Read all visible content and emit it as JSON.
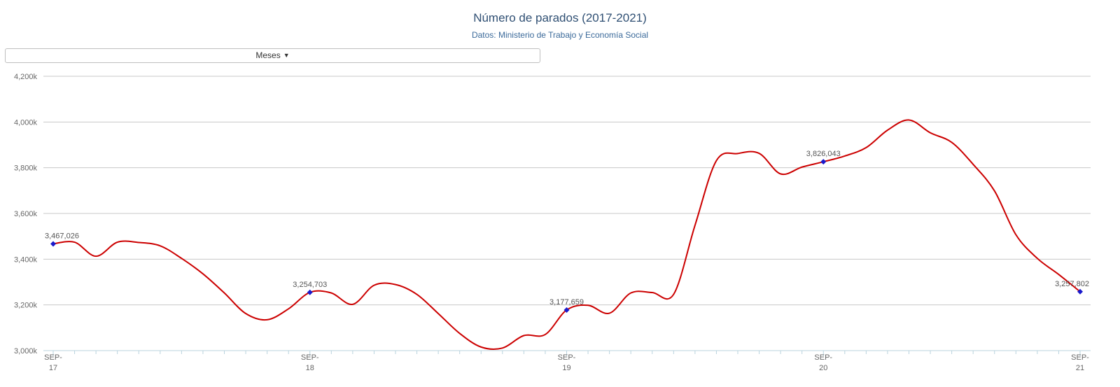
{
  "header": {
    "title": "Número de parados (2017-2021)",
    "subtitle": "Datos: Ministerio de Trabajo y Economía Social"
  },
  "period_selector": {
    "label": "Meses",
    "caret_icon": "caret-down-icon"
  },
  "colors": {
    "line": "#cc0000",
    "marker": "#1a1acc",
    "grid": "#c8c8c8",
    "axis": "#b9d3de",
    "title": "#2f4f73",
    "subtitle": "#3b6a9a"
  },
  "chart_data": {
    "type": "line",
    "title": "Número de parados (2017-2021)",
    "subtitle": "Datos: Ministerio de Trabajo y Economía Social",
    "xlabel": "",
    "ylabel": "",
    "ylim": [
      3000000,
      4200000
    ],
    "yticks": [
      3000000,
      3200000,
      3400000,
      3600000,
      3800000,
      4000000,
      4200000
    ],
    "ytick_labels": [
      "3,000k",
      "3,200k",
      "3,400k",
      "3,600k",
      "3,800k",
      "4,000k",
      "4,200k"
    ],
    "x": [
      "2017-09",
      "2017-10",
      "2017-11",
      "2017-12",
      "2018-01",
      "2018-02",
      "2018-03",
      "2018-04",
      "2018-05",
      "2018-06",
      "2018-07",
      "2018-08",
      "2018-09",
      "2018-10",
      "2018-11",
      "2018-12",
      "2019-01",
      "2019-02",
      "2019-03",
      "2019-04",
      "2019-05",
      "2019-06",
      "2019-07",
      "2019-08",
      "2019-09",
      "2019-10",
      "2019-11",
      "2019-12",
      "2020-01",
      "2020-02",
      "2020-03",
      "2020-04",
      "2020-05",
      "2020-06",
      "2020-07",
      "2020-08",
      "2020-09",
      "2020-10",
      "2020-11",
      "2020-12",
      "2021-01",
      "2021-02",
      "2021-03",
      "2021-04",
      "2021-05",
      "2021-06",
      "2021-07",
      "2021-08",
      "2021-09"
    ],
    "xtick_labels": [
      {
        "month": "SEP-",
        "year": "17"
      },
      {
        "month": "SEP-",
        "year": "18"
      },
      {
        "month": "SEP-",
        "year": "19"
      },
      {
        "month": "SEP-",
        "year": "20"
      },
      {
        "month": "SEP-",
        "year": "21"
      }
    ],
    "series": [
      {
        "values": [
          3467026,
          3474281,
          3412781,
          3474226,
          3472900,
          3458400,
          3403400,
          3335800,
          3252100,
          3162200,
          3135100,
          3182700,
          3254703,
          3252100,
          3202500,
          3285800,
          3289000,
          3246000,
          3161900,
          3075300,
          3015700,
          3011400,
          3065800,
          3070600,
          3177659,
          3198200,
          3163600,
          3252100,
          3253900,
          3246000,
          3548300,
          3831200,
          3862100,
          3862700,
          3773000,
          3802800,
          3826043,
          3851300,
          3888100,
          3964300,
          4008800,
          3952700,
          3911000,
          3814900,
          3698500,
          3507000,
          3403500,
          3333000,
          3257802
        ]
      }
    ],
    "annotated_points": [
      {
        "x": "2017-09",
        "value": 3467026,
        "label": "3,467,026"
      },
      {
        "x": "2018-09",
        "value": 3254703,
        "label": "3,254,703"
      },
      {
        "x": "2019-09",
        "value": 3177659,
        "label": "3,177,659"
      },
      {
        "x": "2020-09",
        "value": 3826043,
        "label": "3,826,043"
      },
      {
        "x": "2021-09",
        "value": 3257802,
        "label": "3,257,802"
      }
    ],
    "grid": true,
    "legend": "none"
  }
}
